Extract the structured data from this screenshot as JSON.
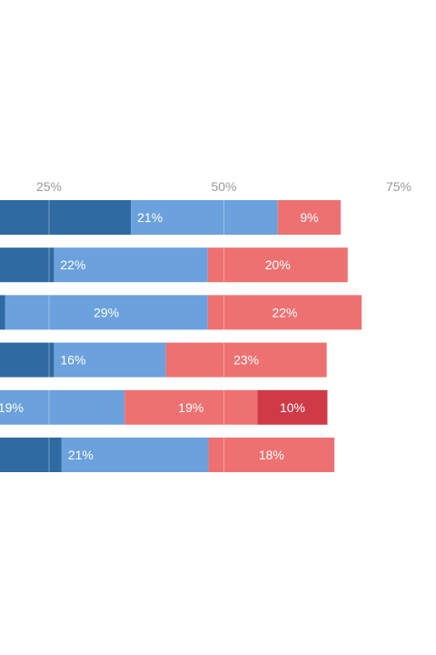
{
  "chart_data": {
    "type": "bar",
    "orientation": "horizontal",
    "stacked": true,
    "xlim": [
      0,
      100
    ],
    "x_ticks": [
      {
        "value": 25,
        "label": "25%"
      },
      {
        "value": 50,
        "label": "50%"
      },
      {
        "value": 75,
        "label": "75%"
      }
    ],
    "grid": true,
    "rows": [
      {
        "segments": [
          {
            "value": 36.7,
            "label": "",
            "color": "#2f6aa3"
          },
          {
            "value": 21,
            "label": "21%",
            "color": "#6ba1dc"
          },
          {
            "value": 9,
            "label": "9%",
            "color": "#ee7171"
          }
        ]
      },
      {
        "segments": [
          {
            "value": 25.7,
            "label": "",
            "color": "#2f6aa3"
          },
          {
            "value": 22,
            "label": "22%",
            "color": "#6ba1dc"
          },
          {
            "value": 20,
            "label": "20%",
            "color": "#ee7171"
          }
        ]
      },
      {
        "segments": [
          {
            "value": 18.7,
            "label": "",
            "color": "#2f6aa3"
          },
          {
            "value": 29,
            "label": "29%",
            "color": "#6ba1dc"
          },
          {
            "value": 22,
            "label": "22%",
            "color": "#ee7171"
          }
        ]
      },
      {
        "segments": [
          {
            "value": 25.7,
            "label": "",
            "color": "#2f6aa3"
          },
          {
            "value": 16,
            "label": "16%",
            "color": "#6ba1dc"
          },
          {
            "value": 23,
            "label": "23%",
            "color": "#ee7171"
          }
        ]
      },
      {
        "segments": [
          {
            "value": 16.8,
            "label": "",
            "color": "#2f6aa3"
          },
          {
            "value": 19,
            "label": "19%",
            "color": "#6ba1dc"
          },
          {
            "value": 19,
            "label": "19%",
            "color": "#ee7171"
          },
          {
            "value": 10,
            "label": "10%",
            "color": "#cf3a47"
          }
        ]
      },
      {
        "segments": [
          {
            "value": 26.8,
            "label": "",
            "color": "#2f6aa3"
          },
          {
            "value": 21,
            "label": "21%",
            "color": "#6ba1dc"
          },
          {
            "value": 18,
            "label": "18%",
            "color": "#ee7171"
          }
        ]
      }
    ]
  }
}
